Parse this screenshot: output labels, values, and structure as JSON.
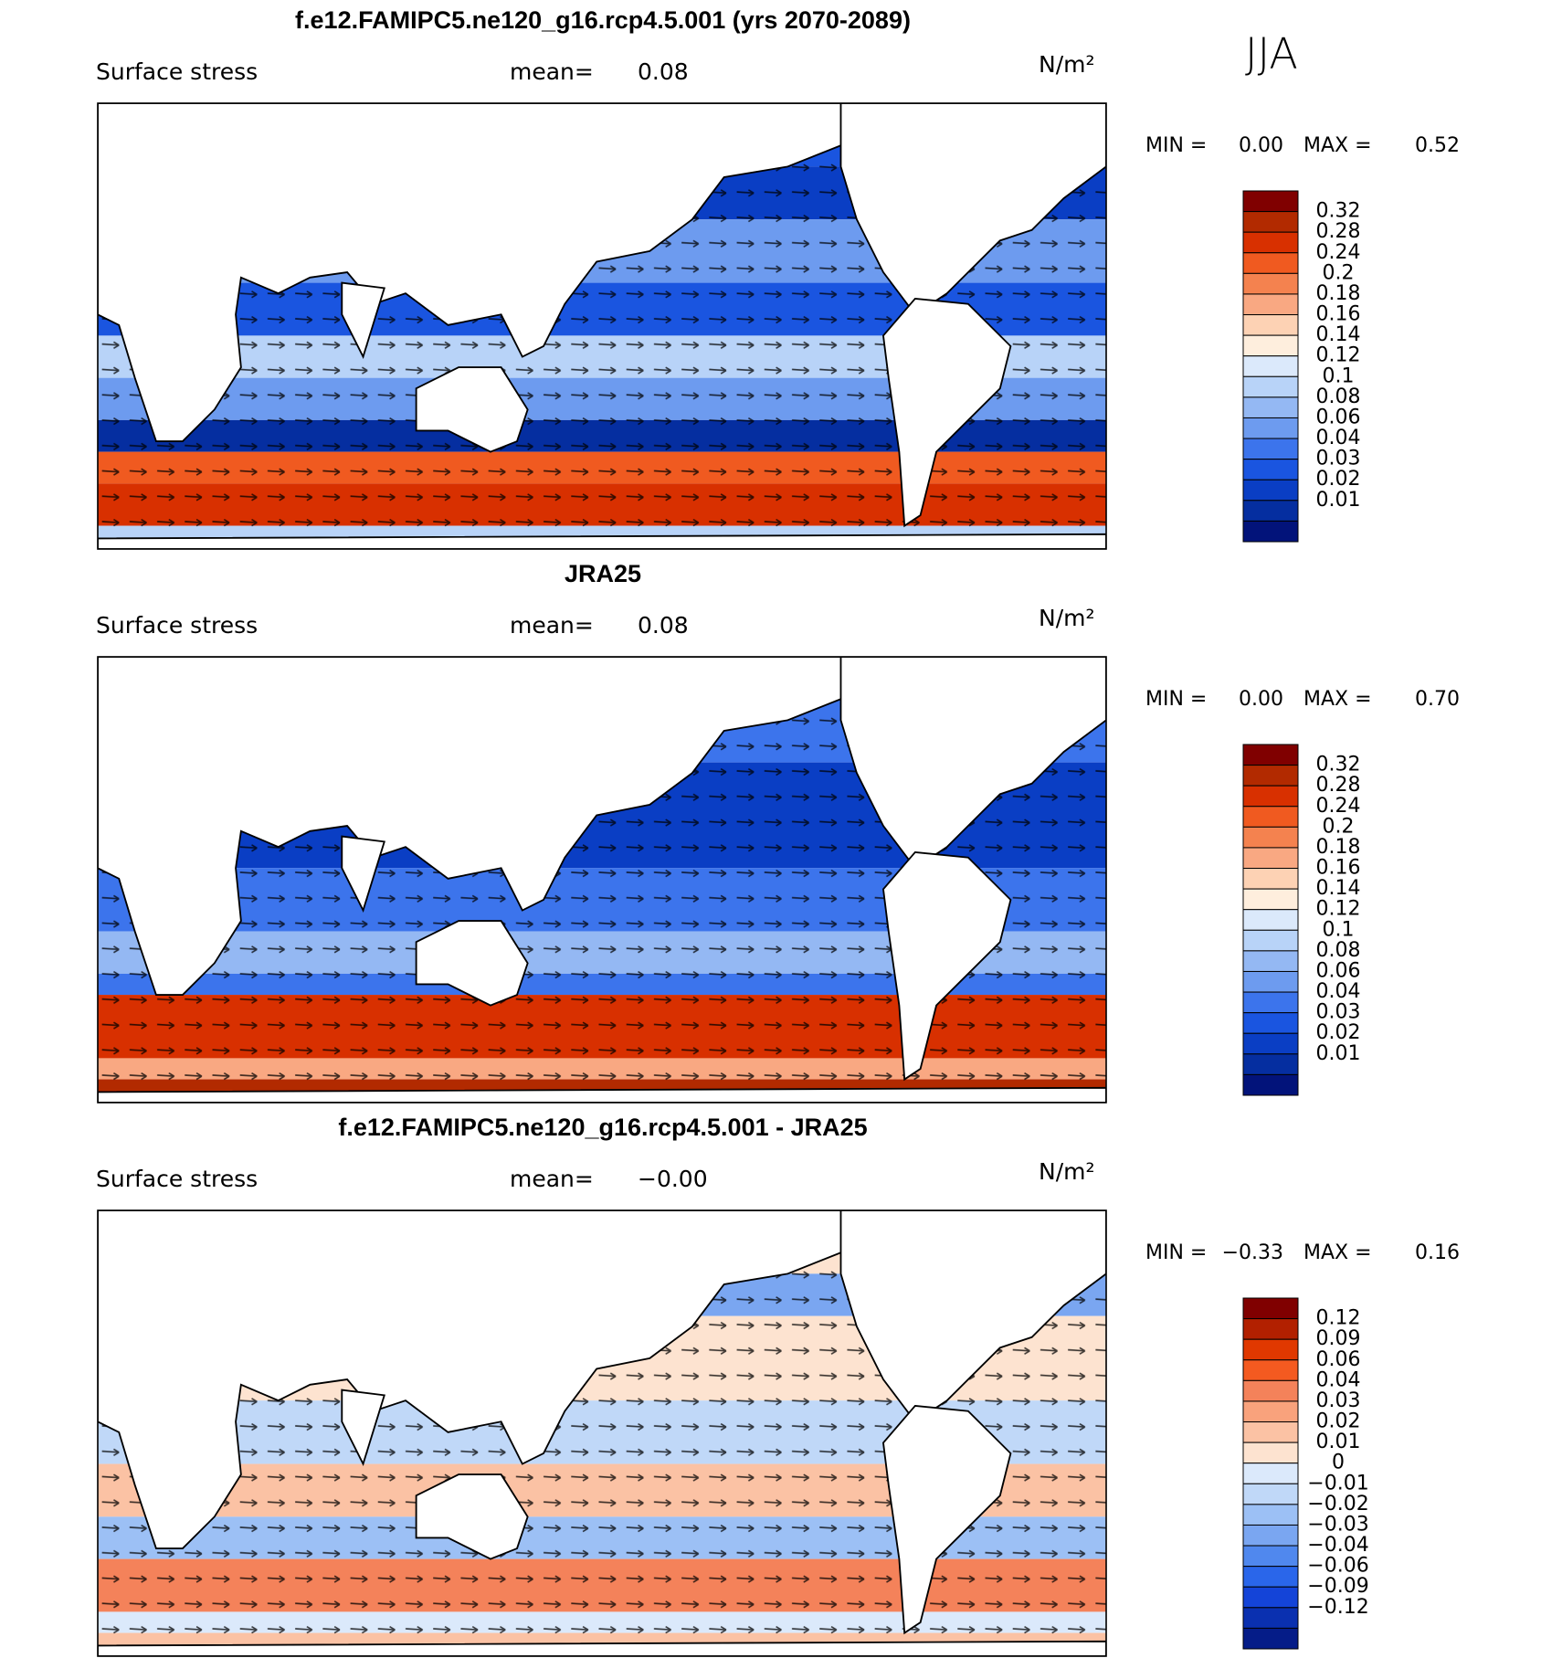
{
  "season": "JJA",
  "panels": [
    {
      "title": "f.e12.FAMIPC5.ne120_g16.rcp4.5.001 (yrs 2070-2089)",
      "field": "Surface stress",
      "mean_label": "mean=",
      "mean": "0.08",
      "units": "N/m²",
      "min_label": "MIN =",
      "min": "0.00",
      "max_label": "MAX =",
      "max": "0.52",
      "levels": [
        "0.32",
        "0.28",
        "0.24",
        "0.2",
        "0.18",
        "0.16",
        "0.14",
        "0.12",
        "0.1",
        "0.08",
        "0.06",
        "0.04",
        "0.03",
        "0.02",
        "0.01"
      ],
      "colors": [
        "#800000",
        "#b22a00",
        "#d83000",
        "#f05a20",
        "#f4824f",
        "#f9a882",
        "#fdd2b4",
        "#feeedd",
        "#dbe9fb",
        "#b8d3f8",
        "#94b8f3",
        "#6d9bef",
        "#3c74ec",
        "#1a55e0",
        "#0a3ec4",
        "#052ea0",
        "#02137a"
      ]
    },
    {
      "title": "JRA25",
      "field": "Surface stress",
      "mean_label": "mean=",
      "mean": "0.08",
      "units": "N/m²",
      "min_label": "MIN =",
      "min": "0.00",
      "max_label": "MAX =",
      "max": "0.70",
      "levels": [
        "0.32",
        "0.28",
        "0.24",
        "0.2",
        "0.18",
        "0.16",
        "0.14",
        "0.12",
        "0.1",
        "0.08",
        "0.06",
        "0.04",
        "0.03",
        "0.02",
        "0.01"
      ],
      "colors": [
        "#800000",
        "#b22a00",
        "#d83000",
        "#f05a20",
        "#f4824f",
        "#f9a882",
        "#fdd2b4",
        "#feeedd",
        "#dbe9fb",
        "#b8d3f8",
        "#94b8f3",
        "#6d9bef",
        "#3c74ec",
        "#1a55e0",
        "#0a3ec4",
        "#052ea0",
        "#02137a"
      ]
    },
    {
      "title": "f.e12.FAMIPC5.ne120_g16.rcp4.5.001 - JRA25",
      "field": "Surface stress",
      "mean_label": "mean=",
      "mean": "−0.00",
      "units": "N/m²",
      "min_label": "MIN =",
      "min": "−0.33",
      "max_label": "MAX =",
      "max": "0.16",
      "levels": [
        "0.12",
        "0.09",
        "0.06",
        "0.04",
        "0.03",
        "0.02",
        "0.01",
        "0",
        "−0.01",
        "−0.02",
        "−0.03",
        "−0.04",
        "−0.06",
        "−0.09",
        "−0.12"
      ],
      "colors": [
        "#800000",
        "#b22000",
        "#e03800",
        "#f45a20",
        "#f4825a",
        "#f9a27c",
        "#fbc2a4",
        "#fde3d0",
        "#dbe9fb",
        "#c0d8f8",
        "#9cc0f5",
        "#7aa6f1",
        "#5088ee",
        "#2a66ea",
        "#1444d8",
        "#0a30b0",
        "#051c88"
      ]
    }
  ]
}
